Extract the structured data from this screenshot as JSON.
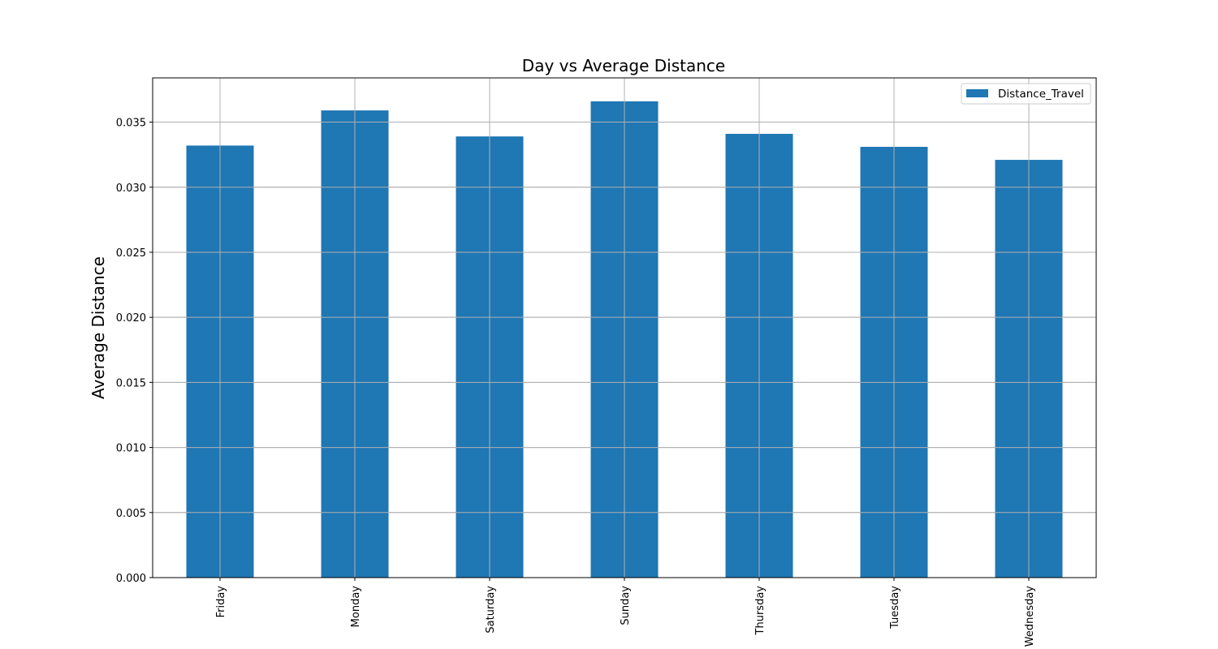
{
  "chart_data": {
    "type": "bar",
    "title": "Day vs Average Distance",
    "xlabel": "",
    "ylabel": "Average Distance",
    "categories": [
      "Friday",
      "Monday",
      "Saturday",
      "Sunday",
      "Thursday",
      "Tuesday",
      "Wednesday"
    ],
    "series": [
      {
        "name": "Distance_Travel",
        "values": [
          0.0332,
          0.0359,
          0.0339,
          0.0366,
          0.0341,
          0.0331,
          0.0321
        ],
        "color": "#1f77b4"
      }
    ],
    "ylim": [
      0,
      0.0384
    ],
    "yticks": [
      "0.000",
      "0.005",
      "0.010",
      "0.015",
      "0.020",
      "0.025",
      "0.030",
      "0.035"
    ],
    "grid": true,
    "legend_position": "top-right"
  }
}
